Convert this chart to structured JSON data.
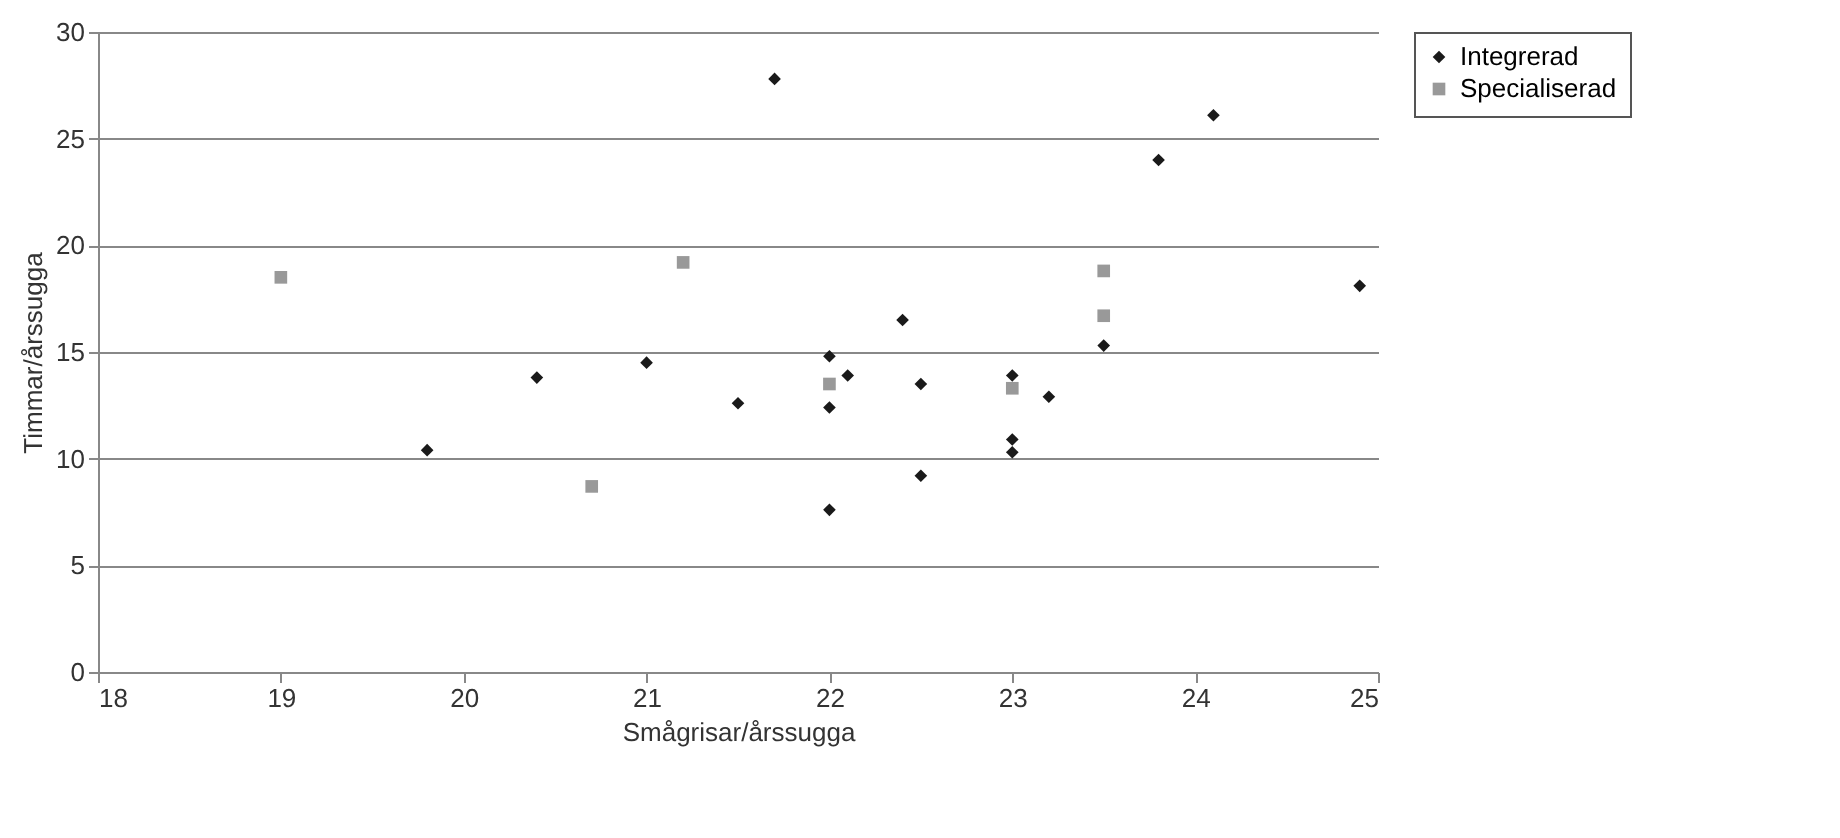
{
  "chart_data": {
    "type": "scatter",
    "xlabel": "Smågrisar/årssugga",
    "ylabel": "Timmar/årssugga",
    "xlim": [
      18,
      25
    ],
    "xticks": [
      18,
      19,
      20,
      21,
      22,
      23,
      24,
      25
    ],
    "ylim": [
      0,
      30
    ],
    "yticks": [
      0,
      5,
      10,
      15,
      20,
      25,
      30
    ],
    "grid": "y",
    "legend": "right",
    "series": [
      {
        "name": "Integrerad",
        "color": "#1a1a1a",
        "marker": "diamond",
        "x": [
          19.8,
          20.4,
          21,
          21.5,
          21.7,
          22,
          22,
          22,
          22.1,
          22.4,
          22.5,
          22.5,
          23,
          23,
          23,
          23.2,
          23.5,
          23.8,
          24.1,
          24.9
        ],
        "values": [
          10.4,
          13.8,
          14.5,
          12.6,
          27.8,
          14.8,
          12.4,
          7.6,
          13.9,
          16.5,
          13.5,
          9.2,
          13.9,
          10.9,
          10.3,
          12.9,
          15.3,
          24,
          26.1,
          18.1
        ]
      },
      {
        "name": "Specialiserad",
        "color": "#999999",
        "marker": "square",
        "x": [
          19,
          20.7,
          21.2,
          22,
          23,
          23.5,
          23.5
        ],
        "values": [
          18.5,
          8.7,
          19.2,
          13.5,
          13.3,
          18.8,
          16.7
        ]
      }
    ]
  }
}
